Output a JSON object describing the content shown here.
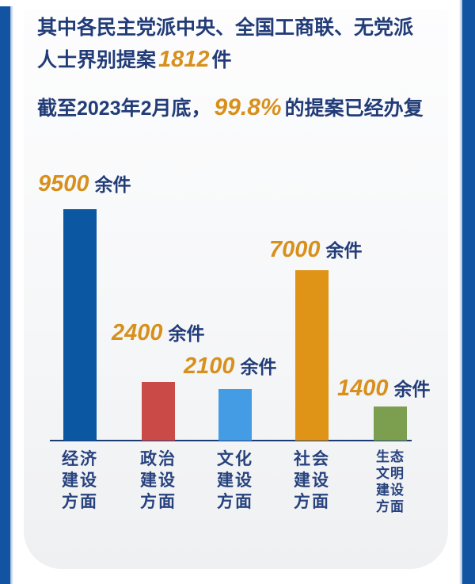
{
  "header": {
    "line1": "其中各民主党派中央、全国工商联、无党派",
    "line2_prefix": "人士界别提案",
    "line2_value": "1812",
    "line2_suffix": "件",
    "line3_prefix": "截至2023年2月底，",
    "line3_value": "99.8%",
    "line3_suffix": "的提案已经办复"
  },
  "chart_data": {
    "type": "bar",
    "categories": [
      "经济建设方面",
      "政治建设方面",
      "文化建设方面",
      "社会建设方面",
      "生态文明建设方面"
    ],
    "category_keys": [
      "economic",
      "political",
      "cultural",
      "social",
      "ecological"
    ],
    "values": [
      9500,
      2400,
      2100,
      7000,
      1400
    ],
    "value_suffix": "余件",
    "colors": [
      "#0b57a2",
      "#c94a47",
      "#449ce4",
      "#df9317",
      "#7b9e4f"
    ],
    "ylim": [
      0,
      9800
    ],
    "grid": false,
    "legend_position": "none",
    "xlabel": "",
    "ylabel": ""
  },
  "colors": {
    "frame_blue": "#1253a2",
    "frame_fade_blue": "#9cb8dd",
    "text_navy": "#223c78",
    "category_navy": "#27427e",
    "accent_orange": "#d8901d",
    "axis_navy": "#1c3a74",
    "panel_gray": "#eff0f2"
  }
}
